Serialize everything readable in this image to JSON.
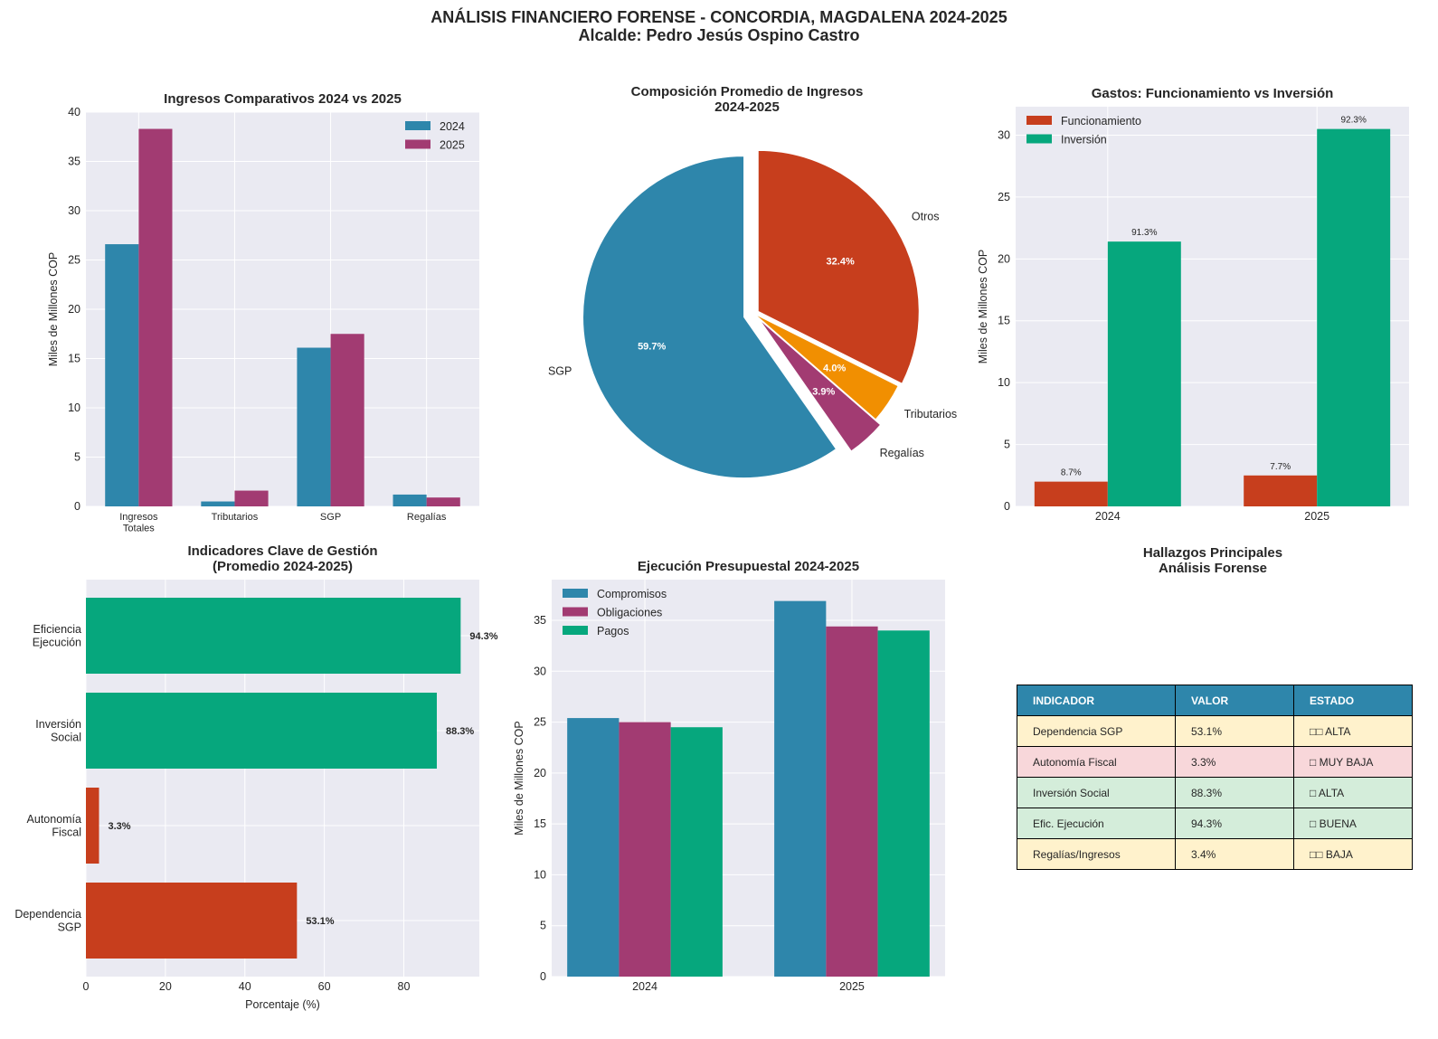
{
  "title": "ANÁLISIS FINANCIERO FORENSE - CONCORDIA, MAGDALENA 2024-2025",
  "subtitle": "Alcalde: Pedro Jesús Ospino Castro",
  "colors": {
    "blue": "#2e86ab",
    "magenta": "#a23b72",
    "orange": "#f18f01",
    "red": "#c73e1d",
    "green": "#06a77d",
    "panel_bg": "#eaeaf2"
  },
  "chart_data": [
    {
      "type": "bar",
      "title": "Ingresos Comparativos 2024 vs 2025",
      "xlabel": "",
      "ylabel": "Miles de Millones COP",
      "categories": [
        "Ingresos\nTotales",
        "Tributarios",
        "SGP",
        "Regalías"
      ],
      "series": [
        {
          "name": "2024",
          "values": [
            26.6,
            0.5,
            16.1,
            1.2
          ]
        },
        {
          "name": "2025",
          "values": [
            38.3,
            1.6,
            17.5,
            0.9
          ]
        }
      ],
      "ylim": [
        0,
        40
      ],
      "yticks": [
        0,
        5,
        10,
        15,
        20,
        25,
        30,
        35,
        40
      ],
      "legend": "top-right",
      "grid": true
    },
    {
      "type": "pie",
      "title": "Composición Promedio de Ingresos\n2024-2025",
      "labels": [
        "SGP",
        "Regalías",
        "Tributarios",
        "Otros"
      ],
      "values": [
        59.7,
        3.9,
        4.0,
        32.4
      ],
      "pct_labels": [
        "59.7%",
        "3.9%",
        "4.0%",
        "32.4%"
      ]
    },
    {
      "type": "bar",
      "title": "Gastos: Funcionamiento vs Inversión",
      "ylabel": "Miles de Millones COP",
      "categories": [
        "2024",
        "2025"
      ],
      "series": [
        {
          "name": "Funcionamiento",
          "values": [
            2.0,
            2.5
          ],
          "labels": [
            "8.7%",
            "7.7%"
          ]
        },
        {
          "name": "Inversión",
          "values": [
            21.4,
            30.5
          ],
          "labels": [
            "91.3%",
            "92.3%"
          ]
        }
      ],
      "ylim": [
        0,
        32.3
      ],
      "yticks": [
        0,
        5,
        10,
        15,
        20,
        25,
        30
      ],
      "legend": "top-left",
      "grid": true
    },
    {
      "type": "barh",
      "title": "Indicadores Clave de Gestión\n(Promedio 2024-2025)",
      "xlabel": "Porcentaje (%)",
      "categories": [
        "Dependencia\nSGP",
        "Autonomía\nFiscal",
        "Inversión\nSocial",
        "Eficiencia\nEjecución"
      ],
      "values": [
        53.1,
        3.3,
        88.3,
        94.3
      ],
      "labels": [
        "53.1%",
        "3.3%",
        "88.3%",
        "94.3%"
      ],
      "bar_colors": [
        "#c73e1d",
        "#c73e1d",
        "#06a77d",
        "#06a77d"
      ],
      "xlim": [
        0,
        99
      ],
      "xticks": [
        0,
        20,
        40,
        60,
        80
      ],
      "grid": true
    },
    {
      "type": "bar",
      "title": "Ejecución Presupuestal 2024-2025",
      "ylabel": "Miles de Millones COP",
      "categories": [
        "2024",
        "2025"
      ],
      "series": [
        {
          "name": "Compromisos",
          "values": [
            25.4,
            36.9
          ]
        },
        {
          "name": "Obligaciones",
          "values": [
            25.0,
            34.4
          ]
        },
        {
          "name": "Pagos",
          "values": [
            24.5,
            34.0
          ]
        }
      ],
      "ylim": [
        0,
        39
      ],
      "yticks": [
        0,
        5,
        10,
        15,
        20,
        25,
        30,
        35
      ],
      "legend": "top-left",
      "grid": true
    }
  ],
  "table": {
    "title": "Hallazgos Principales\nAnálisis Forense",
    "headers": [
      "INDICADOR",
      "VALOR",
      "ESTADO"
    ],
    "rows": [
      {
        "cells": [
          "Dependencia SGP",
          "53.1%",
          "□□ ALTA"
        ],
        "color": "#fff2cc"
      },
      {
        "cells": [
          "Autonomía Fiscal",
          "3.3%",
          "□ MUY BAJA"
        ],
        "color": "#f8d7da"
      },
      {
        "cells": [
          "Inversión Social",
          "88.3%",
          "□ ALTA"
        ],
        "color": "#d4edda"
      },
      {
        "cells": [
          "Efic. Ejecución",
          "94.3%",
          "□ BUENA"
        ],
        "color": "#d4edda"
      },
      {
        "cells": [
          "Regalías/Ingresos",
          "3.4%",
          "□□ BAJA"
        ],
        "color": "#fff2cc"
      }
    ]
  }
}
